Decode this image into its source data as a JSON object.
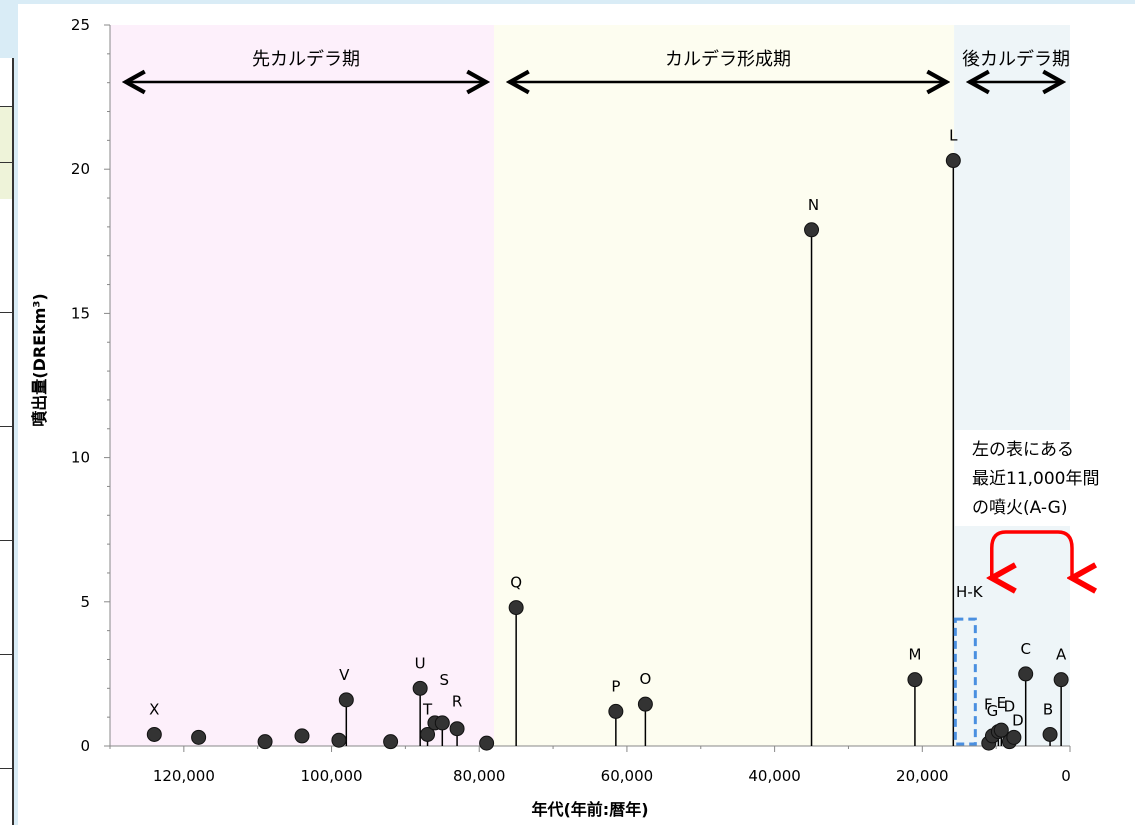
{
  "chart_data": {
    "type": "scatter",
    "subtype": "lollipop",
    "xlabel": "年代(年前:暦年)",
    "ylabel": "噴出量(DREkm³)",
    "xlim": [
      130000,
      0
    ],
    "ylim": [
      0,
      25
    ],
    "x_ticks": [
      {
        "value": 120000,
        "label": "120,000"
      },
      {
        "value": 100000,
        "label": "100,000"
      },
      {
        "value": 80000,
        "label": "80,000"
      },
      {
        "value": 60000,
        "label": "60,000"
      },
      {
        "value": 40000,
        "label": "40,000"
      },
      {
        "value": 20000,
        "label": "20,000"
      },
      {
        "value": 0,
        "label": "0"
      }
    ],
    "y_ticks": [
      {
        "value": 0,
        "label": "0"
      },
      {
        "value": 5,
        "label": "5"
      },
      {
        "value": 10,
        "label": "10"
      },
      {
        "value": 15,
        "label": "15"
      },
      {
        "value": 20,
        "label": "20"
      },
      {
        "value": 25,
        "label": "25"
      }
    ],
    "periods": [
      {
        "label": "先カルデラ期",
        "start": 130000,
        "end": 78000,
        "color": "#fdf0fb"
      },
      {
        "label": "カルデラ形成期",
        "start": 78000,
        "end": 15700,
        "color": "#fdfdf0"
      },
      {
        "label": "後カルデラ期",
        "start": 15700,
        "end": 0,
        "color": "#eef5f8"
      }
    ],
    "points": [
      {
        "x": 124000,
        "y": 0.4,
        "label": "X",
        "stem": false
      },
      {
        "x": 118000,
        "y": 0.3,
        "label": "",
        "stem": false
      },
      {
        "x": 109000,
        "y": 0.15,
        "label": "",
        "stem": false
      },
      {
        "x": 104000,
        "y": 0.35,
        "label": "",
        "stem": false
      },
      {
        "x": 99000,
        "y": 0.2,
        "label": "",
        "stem": false
      },
      {
        "x": 98000,
        "y": 1.6,
        "label": "V",
        "stem": true
      },
      {
        "x": 92000,
        "y": 0.15,
        "label": "",
        "stem": false
      },
      {
        "x": 88000,
        "y": 2.0,
        "label": "U",
        "stem": true
      },
      {
        "x": 87000,
        "y": 0.4,
        "label": "T",
        "stem": true
      },
      {
        "x": 86000,
        "y": 0.8,
        "label": "",
        "stem": false
      },
      {
        "x": 85000,
        "y": 0.8,
        "label": "S",
        "stem": true
      },
      {
        "x": 83000,
        "y": 0.6,
        "label": "R",
        "stem": true
      },
      {
        "x": 79000,
        "y": 0.1,
        "label": "",
        "stem": false
      },
      {
        "x": 75000,
        "y": 4.8,
        "label": "Q",
        "stem": true
      },
      {
        "x": 61500,
        "y": 1.2,
        "label": "P",
        "stem": true
      },
      {
        "x": 57500,
        "y": 1.45,
        "label": "O",
        "stem": true
      },
      {
        "x": 35000,
        "y": 17.9,
        "label": "N",
        "stem": true
      },
      {
        "x": 21000,
        "y": 2.3,
        "label": "M",
        "stem": true
      },
      {
        "x": 15800,
        "y": 20.3,
        "label": "L",
        "stem": true
      },
      {
        "x": 11000,
        "y": 0.1,
        "label": "",
        "stem": false
      },
      {
        "x": 10500,
        "y": 0.35,
        "label": "G",
        "stem": true
      },
      {
        "x": 9700,
        "y": 0.5,
        "label": "F",
        "stem": true
      },
      {
        "x": 9300,
        "y": 0.55,
        "label": "E",
        "stem": true
      },
      {
        "x": 8200,
        "y": 0.15,
        "label": "D",
        "stem": true
      },
      {
        "x": 7600,
        "y": 0.3,
        "label": "D",
        "stem": true
      },
      {
        "x": 6000,
        "y": 2.5,
        "label": "C",
        "stem": true
      },
      {
        "x": 2700,
        "y": 0.4,
        "label": "B",
        "stem": true
      },
      {
        "x": 1200,
        "y": 2.3,
        "label": "A",
        "stem": true
      }
    ],
    "hk_box": {
      "label": "H-K",
      "y": 4.4
    },
    "annotation": {
      "lines": [
        "左の表にある",
        "最近11,000年間",
        "の噴火(A-G)"
      ],
      "color": "#ff0000"
    }
  }
}
